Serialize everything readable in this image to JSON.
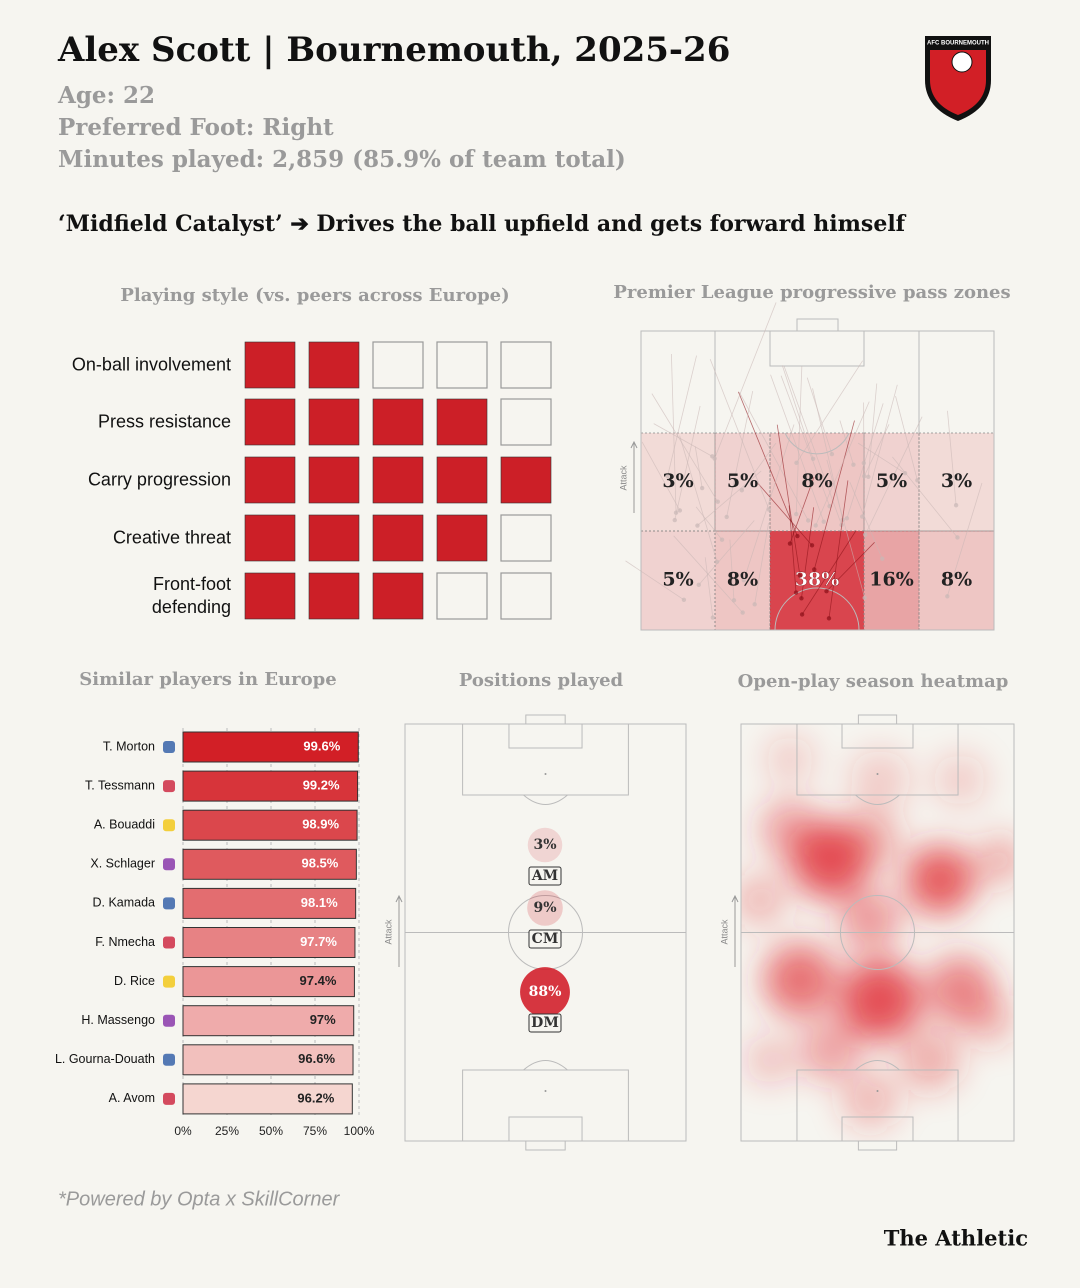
{
  "header": {
    "title": "Alex Scott | Bournemouth, 2025-26",
    "age": "Age: 22",
    "foot": "Preferred Foot: Right",
    "minutes": "Minutes played: 2,859 (85.9% of team total)",
    "tagline": "‘Midfield Catalyst’ ➔ Drives the ball upfield and gets forward himself",
    "badge": "AFC BOURNEMOUTH"
  },
  "chart_data": [
    {
      "type": "rating",
      "title": "Playing style (vs. peers across Europe)",
      "categories": [
        "On-ball involvement",
        "Press resistance",
        "Carry progression",
        "Creative threat",
        "Front-foot defending"
      ],
      "values": [
        2,
        4,
        5,
        4,
        3
      ],
      "ylim": [
        0,
        5
      ],
      "color": "#cc1f27"
    },
    {
      "type": "zones",
      "title": "Premier League progressive pass zones",
      "axis_label": "Attack",
      "values": [
        [
          3,
          5,
          8,
          5,
          3
        ],
        [
          5,
          8,
          38,
          16,
          8
        ]
      ],
      "value_labels": [
        [
          "3%",
          "5%",
          "8%",
          "5%",
          "3%"
        ],
        [
          "5%",
          "8%",
          "38%",
          "16%",
          "8%"
        ]
      ],
      "color": "#d21f2a"
    },
    {
      "type": "bar",
      "title": "Similar players in Europe",
      "orientation": "horizontal",
      "categories": [
        "T. Morton",
        "T. Tessmann",
        "A. Bouaddi",
        "X. Schlager",
        "D. Kamada",
        "F. Nmecha",
        "D. Rice",
        "H. Massengo",
        "L. Gourna-Douath",
        "A. Avom"
      ],
      "values": [
        99.6,
        99.2,
        98.9,
        98.5,
        98.1,
        97.7,
        97.4,
        97,
        96.6,
        96.2
      ],
      "value_labels": [
        "99.6%",
        "99.2%",
        "98.9%",
        "98.5%",
        "98.1%",
        "97.7%",
        "97.4%",
        "97%",
        "96.6%",
        "96.2%"
      ],
      "colors": [
        "#d21f26",
        "#d7343a",
        "#db474c",
        "#df5a5e",
        "#e36d70",
        "#e78284",
        "#eb9697",
        "#efabab",
        "#f2c0bd",
        "#f5d6d0"
      ],
      "xlim": [
        0,
        100
      ],
      "xticks": [
        {
          "value": 0,
          "label": "0%"
        },
        {
          "value": 25,
          "label": "25%"
        },
        {
          "value": 50,
          "label": "50%"
        },
        {
          "value": 75,
          "label": "75%"
        },
        {
          "value": 100,
          "label": "100%"
        }
      ],
      "grid": true
    },
    {
      "type": "bubble",
      "title": "Positions played",
      "axis_label": "Attack",
      "categories": [
        "AM",
        "CM",
        "DM"
      ],
      "values": [
        3,
        9,
        88
      ],
      "value_labels": [
        "3%",
        "9%",
        "88%"
      ],
      "color": "#d21f2a"
    },
    {
      "type": "heatmap",
      "title": "Open-play season heatmap",
      "axis_label": "Attack",
      "color": "#e0282e"
    }
  ],
  "footer": {
    "source": "*Powered by Opta x SkillCorner",
    "brand": "The Athletic"
  }
}
